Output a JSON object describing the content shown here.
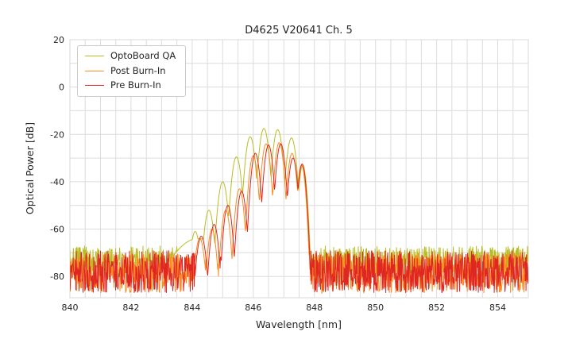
{
  "title": "D4625 V20641 Ch. 5",
  "chart_data": {
    "type": "line",
    "title": "D4625 V20641 Ch. 5",
    "xlabel": "Wavelength [nm]",
    "ylabel": "Optical Power [dB]",
    "xlim": [
      840,
      855
    ],
    "ylim": [
      -89,
      20
    ],
    "xticks": [
      840,
      842,
      844,
      846,
      848,
      850,
      852,
      854
    ],
    "yticks": [
      20,
      0,
      -20,
      -40,
      -60,
      -80
    ],
    "grid": {
      "on": true,
      "minor_x_step_nm": 0.5,
      "minor_y_step_db": 10,
      "color": "#dcdcdc"
    },
    "legend_position": "upper left",
    "sample_step_nm": 0.013,
    "series": [
      {
        "name": "OptoBoard QA",
        "color": "#b8bd23",
        "noise": {
          "floor_top_db": -67,
          "depth_db": 14,
          "seed": 101
        },
        "modes": [
          [
            843.75,
            -67,
            0.15
          ],
          [
            844.2,
            -64,
            0.3
          ],
          [
            844.1,
            -61,
            0.05
          ],
          [
            844.55,
            -52,
            0.05
          ],
          [
            845.0,
            -40,
            0.05
          ],
          [
            845.45,
            -29.5,
            0.05
          ],
          [
            845.9,
            -21,
            0.05
          ],
          [
            846.35,
            -17.5,
            0.05
          ],
          [
            846.8,
            -18,
            0.05
          ],
          [
            847.25,
            -21.5,
            0.05
          ],
          [
            847.62,
            -33,
            0.04
          ]
        ]
      },
      {
        "name": "Post Burn-In",
        "color": "#ff8b1c",
        "noise": {
          "floor_top_db": -70,
          "depth_db": 17,
          "seed": 202
        },
        "modes": [
          [
            844.25,
            -64,
            0.05
          ],
          [
            844.65,
            -60,
            0.045
          ],
          [
            845.1,
            -52,
            0.045
          ],
          [
            845.55,
            -43,
            0.045
          ],
          [
            846.0,
            -29,
            0.045
          ],
          [
            846.42,
            -24,
            0.045
          ],
          [
            846.85,
            -23.5,
            0.045
          ],
          [
            847.27,
            -28,
            0.045
          ],
          [
            847.58,
            -33,
            0.04
          ]
        ]
      },
      {
        "name": "Pre Burn-In",
        "color": "#e02622",
        "noise": {
          "floor_top_db": -69,
          "depth_db": 18,
          "seed": 303
        },
        "modes": [
          [
            844.3,
            -63,
            0.05
          ],
          [
            844.72,
            -58,
            0.045
          ],
          [
            845.17,
            -50,
            0.045
          ],
          [
            845.62,
            -44,
            0.045
          ],
          [
            846.07,
            -28,
            0.045
          ],
          [
            846.5,
            -24.5,
            0.045
          ],
          [
            846.9,
            -24,
            0.045
          ],
          [
            847.3,
            -30,
            0.045
          ],
          [
            847.6,
            -32.5,
            0.04
          ]
        ]
      }
    ]
  }
}
